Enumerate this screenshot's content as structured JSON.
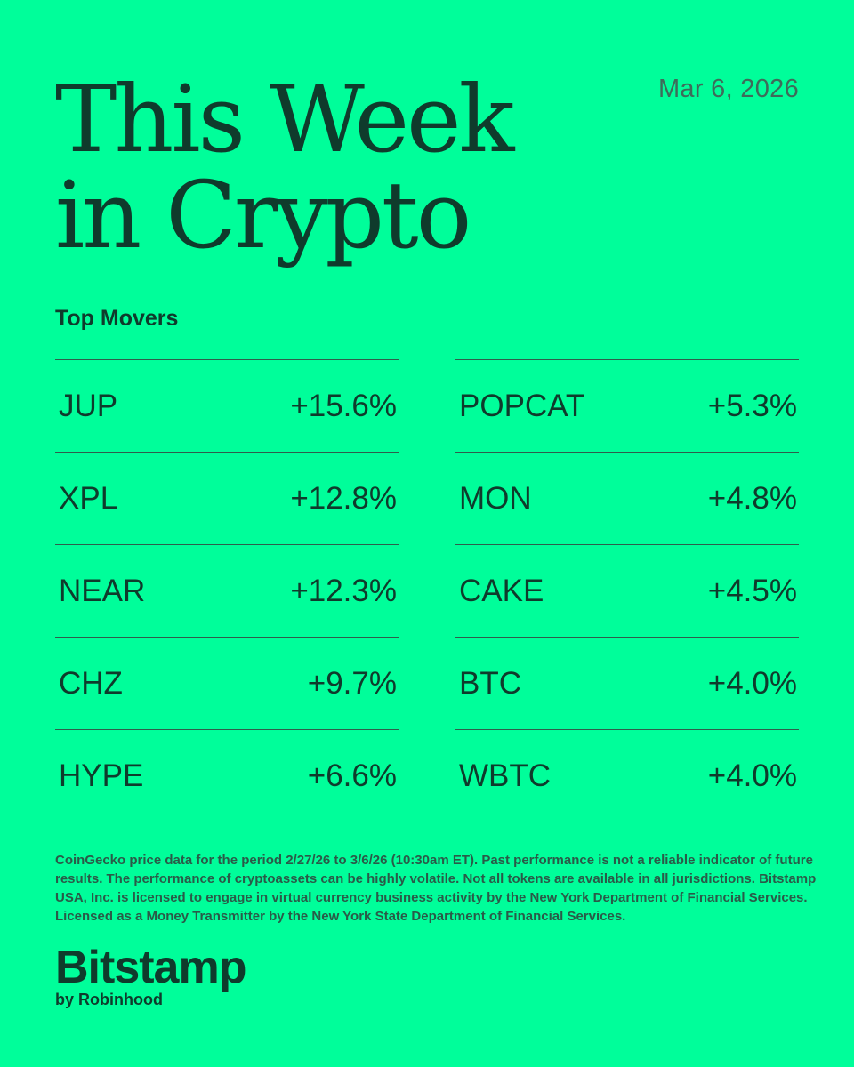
{
  "header": {
    "title_line1": "This Week",
    "title_line2": "in Crypto",
    "date": "Mar 6, 2026"
  },
  "section_title": "Top Movers",
  "movers_left": [
    {
      "symbol": "JUP",
      "change": "+15.6%"
    },
    {
      "symbol": "XPL",
      "change": "+12.8%"
    },
    {
      "symbol": "NEAR",
      "change": "+12.3%"
    },
    {
      "symbol": "CHZ",
      "change": "+9.7%"
    },
    {
      "symbol": "HYPE",
      "change": "+6.6%"
    }
  ],
  "movers_right": [
    {
      "symbol": "POPCAT",
      "change": "+5.3%"
    },
    {
      "symbol": "MON",
      "change": "+4.8%"
    },
    {
      "symbol": "CAKE",
      "change": "+4.5%"
    },
    {
      "symbol": "BTC",
      "change": "+4.0%"
    },
    {
      "symbol": "WBTC",
      "change": "+4.0%"
    }
  ],
  "disclaimer": "CoinGecko price data for the period 2/27/26 to 3/6/26 (10:30am ET). Past performance is not a reliable indicator of future results. The performance of cryptoassets can be highly volatile. Not all tokens are available in all jurisdictions. Bitstamp USA, Inc. is licensed to engage in virtual currency business activity by the New York Department of Financial Services. Licensed as a Money Transmitter by the New York State Department of Financial Services.",
  "brand": {
    "name": "Bitstamp",
    "byline": "by Robinhood"
  },
  "colors": {
    "background": "#00fe9a",
    "text": "#0f3b2c",
    "muted": "#3e6c5a"
  }
}
